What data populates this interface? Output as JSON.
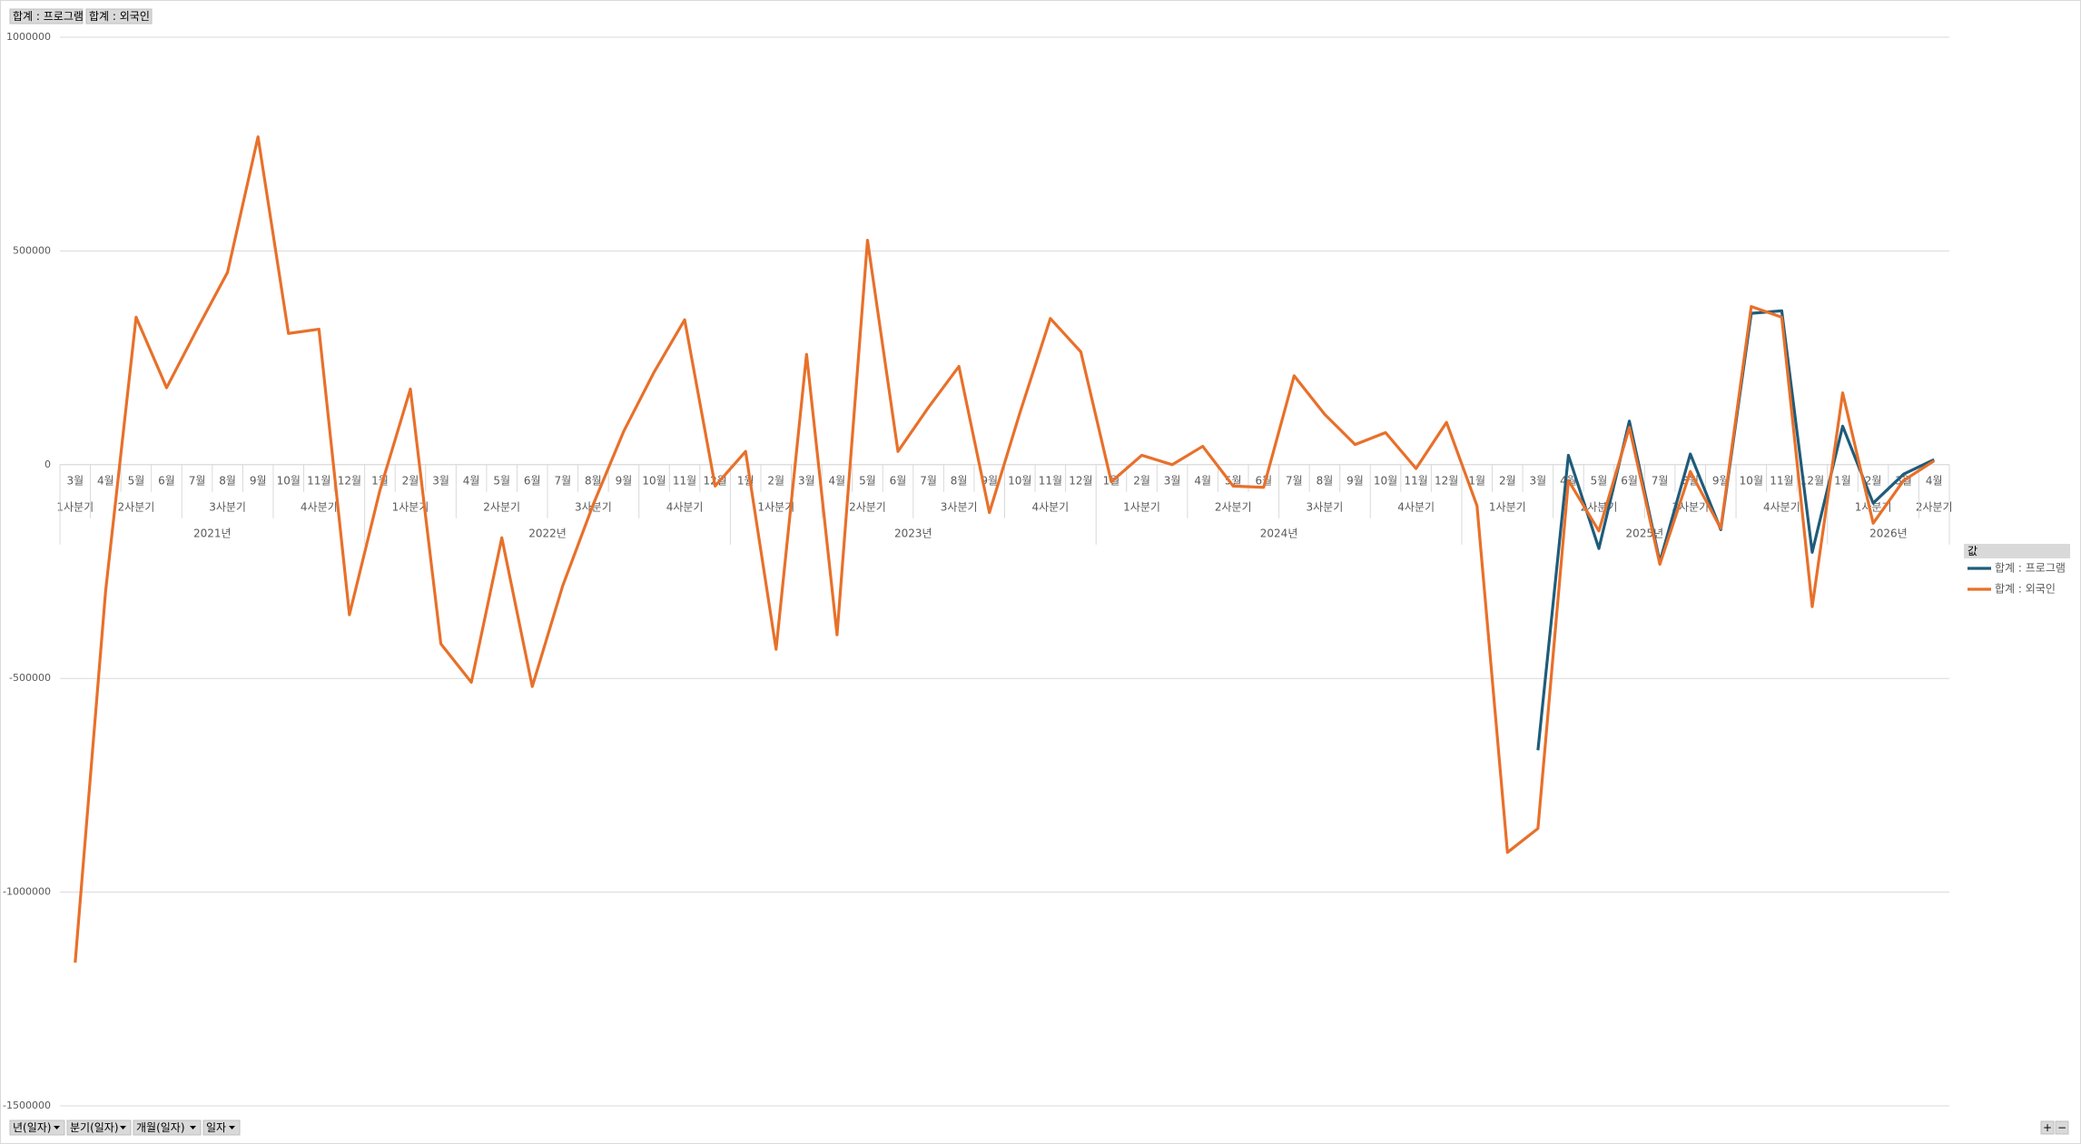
{
  "chart_data": {
    "type": "line",
    "value_fields": [
      "합계 : 프로그램",
      "합계 : 외국인"
    ],
    "axis_fields": [
      "년(일자)",
      "분기(일자)",
      "개월(일자)",
      "일자"
    ],
    "legend_title": "값",
    "zoom_buttons": [
      "+",
      "−"
    ],
    "years": [
      {
        "label": "2021년",
        "quarters": [
          {
            "label": "1사분기",
            "months": [
              "3월"
            ]
          },
          {
            "label": "2사분기",
            "months": [
              "4월",
              "5월",
              "6월"
            ]
          },
          {
            "label": "3사분기",
            "months": [
              "7월",
              "8월",
              "9월"
            ]
          },
          {
            "label": "4사분기",
            "months": [
              "10월",
              "11월",
              "12월"
            ]
          }
        ]
      },
      {
        "label": "2022년",
        "quarters": [
          {
            "label": "1사분기",
            "months": [
              "1월",
              "2월",
              "3월"
            ]
          },
          {
            "label": "2사분기",
            "months": [
              "4월",
              "5월",
              "6월"
            ]
          },
          {
            "label": "3사분기",
            "months": [
              "7월",
              "8월",
              "9월"
            ]
          },
          {
            "label": "4사분기",
            "months": [
              "10월",
              "11월",
              "12월"
            ]
          }
        ]
      },
      {
        "label": "2023년",
        "quarters": [
          {
            "label": "1사분기",
            "months": [
              "1월",
              "2월",
              "3월"
            ]
          },
          {
            "label": "2사분기",
            "months": [
              "4월",
              "5월",
              "6월"
            ]
          },
          {
            "label": "3사분기",
            "months": [
              "7월",
              "8월",
              "9월"
            ]
          },
          {
            "label": "4사분기",
            "months": [
              "10월",
              "11월",
              "12월"
            ]
          }
        ]
      },
      {
        "label": "2024년",
        "quarters": [
          {
            "label": "1사분기",
            "months": [
              "1월",
              "2월",
              "3월"
            ]
          },
          {
            "label": "2사분기",
            "months": [
              "4월",
              "5월",
              "6월"
            ]
          },
          {
            "label": "3사분기",
            "months": [
              "7월",
              "8월",
              "9월"
            ]
          },
          {
            "label": "4사분기",
            "months": [
              "10월",
              "11월",
              "12월"
            ]
          }
        ]
      },
      {
        "label": "2025년",
        "quarters": [
          {
            "label": "1사분기",
            "months": [
              "1월",
              "2월",
              "3월"
            ]
          },
          {
            "label": "2사분기",
            "months": [
              "4월",
              "5월",
              "6월"
            ]
          },
          {
            "label": "3사분기",
            "months": [
              "7월",
              "8월",
              "9월"
            ]
          },
          {
            "label": "4사분기",
            "months": [
              "10월",
              "11월",
              "12월"
            ]
          }
        ]
      },
      {
        "label": "2026년",
        "quarters": [
          {
            "label": "1사분기",
            "months": [
              "1월",
              "2월",
              "3월"
            ]
          },
          {
            "label": "2사분기",
            "months": [
              "4월"
            ]
          }
        ]
      }
    ],
    "series": [
      {
        "name": "합계 : 프로그램",
        "color": "#1f5c7a",
        "values": [
          null,
          null,
          null,
          null,
          null,
          null,
          null,
          null,
          null,
          null,
          null,
          null,
          null,
          null,
          null,
          null,
          null,
          null,
          null,
          null,
          null,
          null,
          null,
          null,
          null,
          null,
          null,
          null,
          null,
          null,
          null,
          null,
          null,
          null,
          null,
          null,
          null,
          null,
          null,
          null,
          null,
          null,
          null,
          null,
          null,
          null,
          null,
          null,
          -668000,
          22000,
          -196000,
          102000,
          -227000,
          25000,
          -152000,
          354000,
          360000,
          -205000,
          90000,
          -90000,
          -22000,
          12000
        ]
      },
      {
        "name": "합계 : 외국인",
        "color": "#e8702a",
        "values": [
          -1165000,
          -295000,
          345000,
          180000,
          317000,
          450000,
          767000,
          307000,
          317000,
          -351000,
          -60000,
          177000,
          -419000,
          -509000,
          -171000,
          -519000,
          -283000,
          -93000,
          78000,
          217000,
          339000,
          -50000,
          31000,
          -432000,
          258000,
          -398000,
          525000,
          31000,
          134000,
          230000,
          -112000,
          121000,
          342000,
          264000,
          -40000,
          22000,
          0,
          43000,
          -50000,
          -53000,
          208000,
          118000,
          47000,
          75000,
          -9000,
          99000,
          -96000,
          -907000,
          -851000,
          -37000,
          -155000,
          87000,
          -233000,
          -16000,
          -149000,
          370000,
          345000,
          -332000,
          168000,
          -137000,
          -37000,
          9000
        ]
      }
    ],
    "ylim": [
      -1500000,
      1000000
    ],
    "yticks": [
      -1500000,
      -1000000,
      -500000,
      0,
      500000,
      1000000
    ],
    "grid": true
  }
}
